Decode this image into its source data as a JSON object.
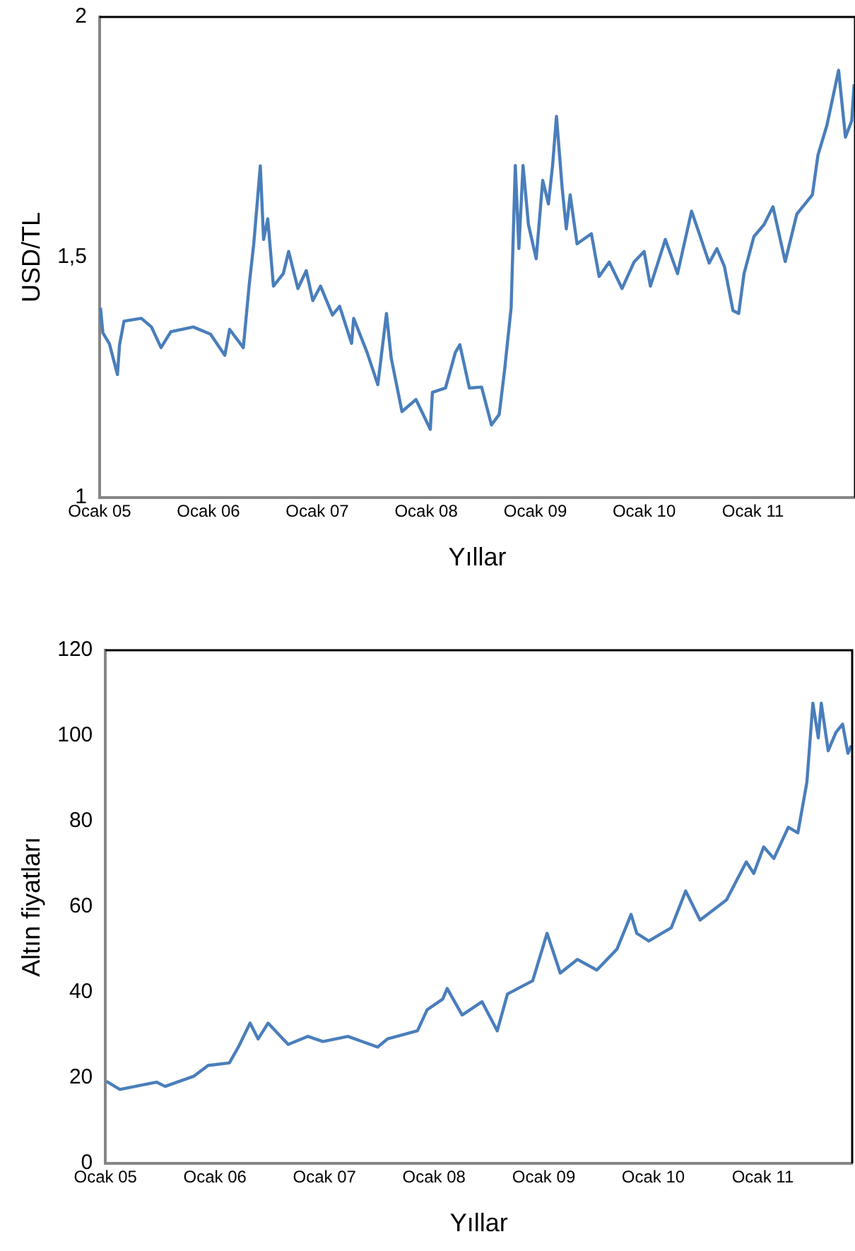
{
  "chart_data": [
    {
      "type": "line",
      "xlabel": "Yıllar",
      "ylabel": "USD/TL",
      "xlim": [
        "2005-01-01",
        "2011-12-09"
      ],
      "ylim": [
        1,
        2
      ],
      "yticks": [
        1,
        {
          "value": 1.5,
          "label": "1,5"
        },
        2
      ],
      "xticks": [
        {
          "value": "2005-01",
          "label": "Ocak 05"
        },
        {
          "value": "2006-01",
          "label": "Ocak 06"
        },
        {
          "value": "2007-01",
          "label": "Ocak 07"
        },
        {
          "value": "2008-01",
          "label": "Ocak 08"
        },
        {
          "value": "2009-01",
          "label": "Ocak 09"
        },
        {
          "value": "2010-01",
          "label": "Ocak 10"
        },
        {
          "value": "2011-01",
          "label": "Ocak 11"
        }
      ],
      "grid": false,
      "legend": false,
      "marker": "none",
      "line_style": "solid",
      "series": [
        {
          "color": "#4a7ebb",
          "x": [
            "2005-01-04",
            "2005-01-12",
            "2005-02-03",
            "2005-03-02",
            "2005-03-09",
            "2005-03-24",
            "2005-05-21",
            "2005-06-24",
            "2005-07-26",
            "2005-08-28",
            "2005-11-11",
            "2006-01-08",
            "2006-02-25",
            "2006-03-13",
            "2006-04-28",
            "2006-05-18",
            "2006-06-02",
            "2006-06-24",
            "2006-07-05",
            "2006-07-19",
            "2006-08-07",
            "2006-09-09",
            "2006-09-27",
            "2006-10-28",
            "2006-11-25",
            "2006-12-17",
            "2007-01-12",
            "2007-02-21",
            "2007-03-17",
            "2007-04-26",
            "2007-05-03",
            "2007-06-17",
            "2007-07-23",
            "2007-08-21",
            "2007-09-06",
            "2007-10-12",
            "2007-11-28",
            "2008-01-15",
            "2008-01-22",
            "2008-03-06",
            "2008-04-08",
            "2008-04-23",
            "2008-05-25",
            "2008-07-05",
            "2008-08-07",
            "2008-09-02",
            "2008-09-20",
            "2008-10-12",
            "2008-10-26",
            "2008-11-07",
            "2008-11-21",
            "2008-12-09",
            "2009-01-04",
            "2009-01-26",
            "2009-02-14",
            "2009-02-28",
            "2009-03-13",
            "2009-04-01",
            "2009-04-15",
            "2009-04-28",
            "2009-05-21",
            "2009-07-08",
            "2009-08-03",
            "2009-09-06",
            "2009-10-19",
            "2009-11-28",
            "2010-01-01",
            "2010-01-22",
            "2010-03-13",
            "2010-04-23",
            "2010-06-09",
            "2010-07-05",
            "2010-08-07",
            "2010-09-02",
            "2010-09-27",
            "2010-10-26",
            "2010-11-14",
            "2010-12-02",
            "2011-01-04",
            "2011-02-07",
            "2011-03-09",
            "2011-04-19",
            "2011-05-28",
            "2011-07-19",
            "2011-08-07",
            "2011-09-06",
            "2011-10-15",
            "2011-11-07",
            "2011-11-28",
            "2011-12-06"
          ],
          "values": [
            1.395,
            1.343,
            1.32,
            1.256,
            1.318,
            1.367,
            1.373,
            1.355,
            1.312,
            1.345,
            1.355,
            1.34,
            1.296,
            1.35,
            1.312,
            1.444,
            1.528,
            1.69,
            1.537,
            1.58,
            1.44,
            1.466,
            1.512,
            1.435,
            1.472,
            1.41,
            1.44,
            1.38,
            1.398,
            1.321,
            1.373,
            1.302,
            1.235,
            1.383,
            1.29,
            1.179,
            1.204,
            1.142,
            1.219,
            1.228,
            1.302,
            1.318,
            1.228,
            1.23,
            1.151,
            1.173,
            1.265,
            1.395,
            1.691,
            1.518,
            1.691,
            1.568,
            1.497,
            1.66,
            1.611,
            1.691,
            1.793,
            1.645,
            1.559,
            1.63,
            1.528,
            1.549,
            1.46,
            1.49,
            1.435,
            1.49,
            1.512,
            1.44,
            1.537,
            1.466,
            1.596,
            1.549,
            1.488,
            1.518,
            1.481,
            1.389,
            1.383,
            1.466,
            1.543,
            1.568,
            1.605,
            1.491,
            1.59,
            1.63,
            1.713,
            1.775,
            1.889,
            1.75,
            1.784,
            1.86
          ]
        }
      ]
    },
    {
      "type": "line",
      "xlabel": "Yıllar",
      "ylabel": "Altın fiyatları",
      "xlim": [
        "2005-01-01",
        "2011-10-26"
      ],
      "ylim": [
        0,
        120
      ],
      "yticks": [
        0,
        20,
        40,
        60,
        80,
        100,
        120
      ],
      "xticks": [
        {
          "value": "2005-01",
          "label": "Ocak 05"
        },
        {
          "value": "2006-01",
          "label": "Ocak 06"
        },
        {
          "value": "2007-01",
          "label": "Ocak 07"
        },
        {
          "value": "2008-01",
          "label": "Ocak 08"
        },
        {
          "value": "2009-01",
          "label": "Ocak 09"
        },
        {
          "value": "2010-01",
          "label": "Ocak 10"
        },
        {
          "value": "2011-01",
          "label": "Ocak 11"
        }
      ],
      "grid": false,
      "legend": false,
      "marker": "none",
      "line_style": "solid",
      "series": [
        {
          "color": "#4a7ebb",
          "x": [
            "2005-01-04",
            "2005-02-18",
            "2005-06-20",
            "2005-07-19",
            "2005-10-23",
            "2005-12-09",
            "2006-02-18",
            "2006-03-20",
            "2006-04-28",
            "2006-05-25",
            "2006-06-27",
            "2006-09-02",
            "2006-11-07",
            "2006-12-27",
            "2007-03-20",
            "2007-06-27",
            "2007-07-30",
            "2007-11-07",
            "2007-12-09",
            "2008-01-30",
            "2008-02-14",
            "2008-04-04",
            "2008-06-09",
            "2008-07-30",
            "2008-09-02",
            "2008-11-25",
            "2009-01-12",
            "2009-02-25",
            "2009-04-23",
            "2009-06-27",
            "2009-09-02",
            "2009-10-19",
            "2009-11-07",
            "2009-12-17",
            "2010-03-02",
            "2010-04-19",
            "2010-06-06",
            "2010-09-02",
            "2010-11-07",
            "2010-12-02",
            "2011-01-04",
            "2011-02-07",
            "2011-03-27",
            "2011-04-28",
            "2011-05-28",
            "2011-06-17",
            "2011-07-05",
            "2011-07-15",
            "2011-08-07",
            "2011-09-02",
            "2011-09-24",
            "2011-10-12",
            "2011-10-23"
          ],
          "values": [
            19.2,
            17.3,
            19,
            18,
            20.4,
            22.9,
            23.5,
            27.2,
            32.8,
            29.1,
            32.8,
            27.8,
            29.7,
            28.5,
            29.7,
            27.2,
            29.1,
            31,
            35.9,
            38.4,
            40.9,
            34.7,
            37.8,
            31,
            39.6,
            42.7,
            53.8,
            44.5,
            47.7,
            45.2,
            50.1,
            58.2,
            53.8,
            52,
            55.1,
            63.7,
            56.9,
            61.6,
            70.5,
            67.8,
            74,
            71.3,
            78.6,
            77.3,
            89.1,
            107.6,
            99.5,
            107.6,
            96.5,
            100.8,
            102.7,
            95.9,
            97.7
          ]
        }
      ]
    }
  ]
}
